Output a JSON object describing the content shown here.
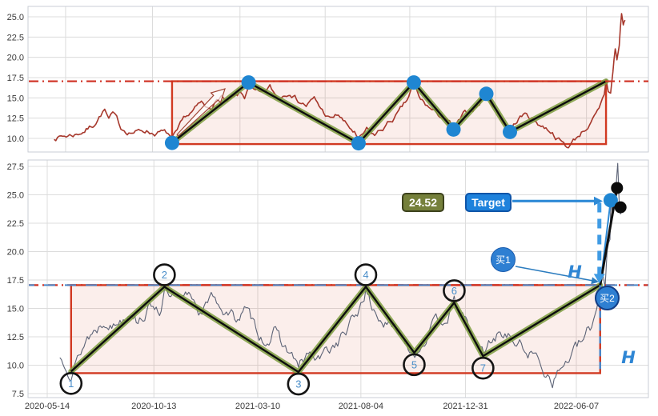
{
  "chart_data": {
    "type": "line",
    "description": "Two-panel price chart with consolidation box, zigzag pivots 1-7, breakout and measured-move target",
    "x_ticks": {
      "dates": [
        "2020-05-14",
        "2020-10-13",
        "2021-03-10",
        "2021-08-04",
        "2021-12-31",
        "2022-06-07"
      ],
      "labels": [
        "2020-05-14",
        "2020-10-13",
        "2021-03-10",
        "2021-08-04",
        "2021-12-31",
        "2022-06-07"
      ]
    },
    "top_panel": {
      "y_ticks": [
        10.0,
        12.5,
        15.0,
        17.5,
        20.0,
        22.5,
        25.0
      ],
      "extra_grid_date": "2019-12-15",
      "price": [
        [
          "2019-11-25",
          10.15
        ],
        [
          "2019-12-13",
          10.3
        ],
        [
          "2020-01-03",
          10.55
        ],
        [
          "2020-01-17",
          11.0
        ],
        [
          "2020-01-31",
          11.6
        ],
        [
          "2020-02-14",
          13.0
        ],
        [
          "2020-02-21",
          13.55
        ],
        [
          "2020-02-28",
          12.3
        ],
        [
          "2020-03-06",
          12.9
        ],
        [
          "2020-03-13",
          12.2
        ],
        [
          "2020-03-20",
          11.2
        ],
        [
          "2020-04-03",
          10.9
        ],
        [
          "2020-04-17",
          10.8
        ],
        [
          "2020-05-01",
          11.05
        ],
        [
          "2020-05-15",
          10.7
        ],
        [
          "2020-05-29",
          10.75
        ],
        [
          "2020-06-10",
          10.5
        ],
        [
          "2020-06-17",
          9.8
        ],
        [
          "2020-06-26",
          10.6
        ],
        [
          "2020-07-10",
          12.5
        ],
        [
          "2020-07-24",
          13.3
        ],
        [
          "2020-08-07",
          14.3
        ],
        [
          "2020-08-14",
          13.6
        ],
        [
          "2020-08-28",
          14.2
        ],
        [
          "2020-09-11",
          15.3
        ],
        [
          "2020-09-18",
          14.3
        ],
        [
          "2020-09-30",
          14.7
        ],
        [
          "2020-10-14",
          15.4
        ],
        [
          "2020-10-21",
          14.9
        ],
        [
          "2020-10-28",
          16.6
        ],
        [
          "2020-11-06",
          15.8
        ],
        [
          "2020-11-20",
          15.2
        ],
        [
          "2020-12-04",
          16.2
        ],
        [
          "2020-12-18",
          14.9
        ],
        [
          "2021-01-08",
          16.0
        ],
        [
          "2021-01-22",
          14.8
        ],
        [
          "2021-02-05",
          14.1
        ],
        [
          "2021-02-19",
          14.8
        ],
        [
          "2021-03-05",
          13.4
        ],
        [
          "2021-03-19",
          12.3
        ],
        [
          "2021-04-02",
          12.9
        ],
        [
          "2021-04-16",
          11.6
        ],
        [
          "2021-04-30",
          10.7
        ],
        [
          "2021-05-07",
          9.6
        ],
        [
          "2021-05-21",
          10.9
        ],
        [
          "2021-06-04",
          10.3
        ],
        [
          "2021-06-18",
          11.2
        ],
        [
          "2021-07-02",
          12.1
        ],
        [
          "2021-07-16",
          13.1
        ],
        [
          "2021-07-30",
          14.5
        ],
        [
          "2021-08-11",
          16.7
        ],
        [
          "2021-08-20",
          14.9
        ],
        [
          "2021-09-03",
          14.0
        ],
        [
          "2021-09-17",
          13.1
        ],
        [
          "2021-10-01",
          12.6
        ],
        [
          "2021-10-15",
          11.6
        ],
        [
          "2021-10-22",
          11.3
        ],
        [
          "2021-11-05",
          12.7
        ],
        [
          "2021-11-19",
          13.5
        ],
        [
          "2021-12-03",
          14.3
        ],
        [
          "2021-12-15",
          15.3
        ],
        [
          "2021-12-29",
          13.9
        ],
        [
          "2022-01-12",
          12.2
        ],
        [
          "2022-01-26",
          11.0
        ],
        [
          "2022-02-09",
          12.5
        ],
        [
          "2022-02-23",
          13.0
        ],
        [
          "2022-03-09",
          12.2
        ],
        [
          "2022-03-23",
          11.5
        ],
        [
          "2022-04-06",
          11.0
        ],
        [
          "2022-04-20",
          9.9
        ],
        [
          "2022-05-04",
          8.9
        ],
        [
          "2022-05-18",
          9.9
        ],
        [
          "2022-06-01",
          11.0
        ],
        [
          "2022-06-15",
          11.9
        ],
        [
          "2022-06-29",
          13.3
        ],
        [
          "2022-07-08",
          15.2
        ],
        [
          "2022-07-11",
          17.1
        ],
        [
          "2022-07-15",
          15.9
        ],
        [
          "2022-07-19",
          15.6
        ],
        [
          "2022-07-23",
          18.2
        ],
        [
          "2022-07-27",
          21.1
        ],
        [
          "2022-07-30",
          19.6
        ],
        [
          "2022-08-03",
          21.5
        ],
        [
          "2022-08-07",
          25.5
        ],
        [
          "2022-08-10",
          24.0
        ],
        [
          "2022-08-13",
          24.6
        ]
      ]
    },
    "bottom_panel": {
      "y_ticks": [
        7.5,
        10.0,
        12.5,
        15.0,
        17.5,
        20.0,
        22.5,
        25.0,
        27.5
      ],
      "price": [
        [
          "2020-06-01",
          10.6
        ],
        [
          "2020-06-10",
          10.45
        ],
        [
          "2020-06-17",
          9.7
        ],
        [
          "2020-06-26",
          10.6
        ],
        [
          "2020-07-10",
          12.5
        ],
        [
          "2020-07-24",
          13.3
        ],
        [
          "2020-08-07",
          14.3
        ],
        [
          "2020-08-14",
          13.6
        ],
        [
          "2020-08-28",
          14.2
        ],
        [
          "2020-09-11",
          15.3
        ],
        [
          "2020-09-18",
          14.3
        ],
        [
          "2020-09-30",
          14.7
        ],
        [
          "2020-10-14",
          15.4
        ],
        [
          "2020-10-21",
          14.9
        ],
        [
          "2020-10-28",
          16.6
        ],
        [
          "2020-11-06",
          15.8
        ],
        [
          "2020-11-20",
          15.2
        ],
        [
          "2020-12-04",
          16.2
        ],
        [
          "2020-12-18",
          14.9
        ],
        [
          "2021-01-08",
          16.0
        ],
        [
          "2021-01-22",
          14.8
        ],
        [
          "2021-02-05",
          14.1
        ],
        [
          "2021-02-19",
          14.8
        ],
        [
          "2021-03-05",
          13.4
        ],
        [
          "2021-03-19",
          12.3
        ],
        [
          "2021-04-02",
          12.9
        ],
        [
          "2021-04-16",
          11.6
        ],
        [
          "2021-04-30",
          10.7
        ],
        [
          "2021-05-07",
          9.6
        ],
        [
          "2021-05-21",
          10.9
        ],
        [
          "2021-06-04",
          10.3
        ],
        [
          "2021-06-18",
          11.2
        ],
        [
          "2021-07-02",
          12.1
        ],
        [
          "2021-07-16",
          13.1
        ],
        [
          "2021-07-30",
          14.5
        ],
        [
          "2021-08-11",
          16.7
        ],
        [
          "2021-08-20",
          14.9
        ],
        [
          "2021-09-03",
          14.0
        ],
        [
          "2021-09-17",
          13.1
        ],
        [
          "2021-10-01",
          12.6
        ],
        [
          "2021-10-15",
          11.6
        ],
        [
          "2021-10-22",
          11.3
        ],
        [
          "2021-11-05",
          12.7
        ],
        [
          "2021-11-19",
          13.5
        ],
        [
          "2021-12-03",
          14.3
        ],
        [
          "2021-12-15",
          15.3
        ],
        [
          "2021-12-29",
          13.9
        ],
        [
          "2022-01-12",
          12.2
        ],
        [
          "2022-01-26",
          11.0
        ],
        [
          "2022-02-09",
          12.5
        ],
        [
          "2022-02-23",
          13.0
        ],
        [
          "2022-03-09",
          12.2
        ],
        [
          "2022-03-23",
          11.5
        ],
        [
          "2022-04-06",
          11.0
        ],
        [
          "2022-04-20",
          9.9
        ],
        [
          "2022-05-04",
          8.9
        ],
        [
          "2022-05-18",
          9.9
        ],
        [
          "2022-06-01",
          11.0
        ],
        [
          "2022-06-15",
          11.9
        ],
        [
          "2022-06-29",
          13.3
        ],
        [
          "2022-07-06",
          15.0
        ],
        [
          "2022-07-11",
          17.15
        ],
        [
          "2022-07-14",
          18.6
        ],
        [
          "2022-07-18",
          17.2
        ],
        [
          "2022-07-21",
          20.3
        ],
        [
          "2022-07-25",
          21.6
        ],
        [
          "2022-07-26",
          24.5
        ],
        [
          "2022-07-29",
          23.2
        ],
        [
          "2022-08-01",
          24.8
        ],
        [
          "2022-08-03",
          26.0
        ],
        [
          "2022-08-05",
          27.4
        ],
        [
          "2022-08-07",
          25.0
        ],
        [
          "2022-08-09",
          23.9
        ],
        [
          "2022-08-10",
          24.2
        ]
      ]
    },
    "zigzag_pivots": [
      {
        "n": "1",
        "date": "2020-06-17",
        "price": 9.45,
        "kind": "low"
      },
      {
        "n": "2",
        "date": "2020-10-28",
        "price": 16.9,
        "kind": "high"
      },
      {
        "n": "3",
        "date": "2021-05-07",
        "price": 9.4,
        "kind": "low"
      },
      {
        "n": "4",
        "date": "2021-08-11",
        "price": 16.9,
        "kind": "high"
      },
      {
        "n": "5",
        "date": "2021-10-19",
        "price": 11.1,
        "kind": "low"
      },
      {
        "n": "6",
        "date": "2021-12-15",
        "price": 15.5,
        "kind": "high"
      },
      {
        "n": "7",
        "date": "2022-01-25",
        "price": 10.8,
        "kind": "low"
      },
      {
        "n": "",
        "date": "2022-07-11",
        "price": 17.05,
        "kind": "breakout"
      }
    ],
    "box": {
      "start": "2020-06-17",
      "end": "2022-07-11",
      "low": 9.3,
      "high": 17.05
    },
    "resistance_level": 17.05,
    "breakout_line": [
      [
        "2022-07-11",
        17.05
      ],
      [
        "2022-08-04",
        25.6
      ]
    ],
    "measure_line": [
      [
        "2022-07-11",
        17.05
      ],
      [
        "2022-07-26",
        24.52
      ]
    ],
    "markers": {
      "target_dot": {
        "date": "2022-07-26",
        "price": 24.52
      },
      "high_dots": [
        {
          "date": "2022-08-04",
          "price": 25.6
        },
        {
          "date": "2022-08-09",
          "price": 23.9
        }
      ]
    },
    "annotations": {
      "target_price_label": "24.52",
      "target_label": "Target",
      "buy1": "买1",
      "buy2": "买2",
      "h": "H"
    },
    "colors": {
      "price_top": "#a6372b",
      "price_bottom": "#5c6376",
      "zigzag_glow": "#7d9c3f",
      "zigzag_core": "#0d0d0d",
      "pivot_dot": "#1f86d2",
      "box_border": "#d13a22",
      "box_fill": "rgba(213,63,38,0.09)",
      "resistance": "#cf2e20",
      "blue_dash": "#4a86c8",
      "arrow_blue": "#2e8ad6",
      "dash_arrow": "#3f9be4",
      "circle_number": "#4a8ec9",
      "grid": "#dcdcdc",
      "axis_text": "#3a3a3a"
    }
  }
}
